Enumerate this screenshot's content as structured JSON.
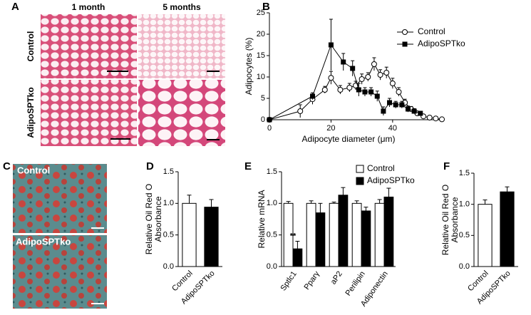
{
  "figure": {
    "panel_labels": [
      "A",
      "B",
      "C",
      "D",
      "E",
      "F"
    ],
    "panel_a": {
      "columns": [
        "1 month",
        "5 months"
      ],
      "rows": [
        "Control",
        "AdipoSPTko"
      ]
    },
    "panel_c": {
      "rows": [
        "Control",
        "AdipoSPTko"
      ]
    }
  },
  "chart_data": [
    {
      "type": "line",
      "ylabel": "Adipocytes (%)",
      "xlabel": "Adipocyte diameter (μm)",
      "legend": "upper right",
      "xlim": [
        0,
        56
      ],
      "xticks": [
        0,
        20,
        40
      ],
      "ylim": [
        0,
        25
      ],
      "yticks": [
        0,
        5,
        10,
        15,
        20,
        25
      ],
      "series": [
        {
          "name": "Control",
          "marker": "circle",
          "color": "#000000",
          "x": [
            0,
            10,
            14,
            18,
            20,
            23,
            26,
            28,
            30,
            32,
            34,
            36,
            38,
            40,
            42,
            44,
            46,
            48,
            50,
            52,
            54,
            56
          ],
          "values": [
            0,
            2,
            4.8,
            7,
            9.8,
            7,
            7.5,
            8,
            9.5,
            10,
            13,
            10.5,
            11,
            8.5,
            6.5,
            4,
            2.5,
            1.5,
            0.8,
            0.5,
            0.3,
            0.1
          ],
          "errors": [
            0,
            1.5,
            1.2,
            0.8,
            1.5,
            1,
            1,
            1,
            1.2,
            1,
            1.5,
            1.2,
            1.3,
            1.2,
            1,
            0.8,
            0.6,
            0.5,
            0.4,
            0.3,
            0.2,
            0.1
          ]
        },
        {
          "name": "AdipoSPTko",
          "marker": "square",
          "color": "#000000",
          "x": [
            0,
            14,
            20,
            24,
            27,
            29,
            31,
            33,
            35,
            37,
            39,
            41,
            43,
            45,
            47,
            49
          ],
          "values": [
            0,
            5.5,
            17.5,
            13.5,
            12,
            7,
            6.5,
            6.5,
            5.5,
            2,
            4,
            3.5,
            3.5,
            2.5,
            2,
            1.5
          ],
          "errors": [
            0,
            0.8,
            6,
            2,
            1.8,
            1.5,
            1,
            1,
            1.2,
            1,
            1,
            0.8,
            0.8,
            0.7,
            0.6,
            0.5
          ]
        }
      ]
    },
    {
      "type": "bar",
      "ylabel": [
        "Relative Oil Red O",
        "Absorbance"
      ],
      "categories": [
        "Control",
        "AdipoSPTko"
      ],
      "values": [
        1.0,
        0.94
      ],
      "errors": [
        0.13,
        0.12
      ],
      "colors": [
        "#ffffff",
        "#000000"
      ],
      "ylim": [
        0,
        1.5
      ],
      "yticks": [
        {
          "value": 0,
          "label": "0.0"
        },
        {
          "value": 0.5,
          "label": "0.5"
        },
        {
          "value": 1,
          "label": "1.0"
        },
        {
          "value": 1.5,
          "label": "1.5"
        }
      ]
    },
    {
      "type": "bar",
      "ylabel": [
        "Relative mRNA"
      ],
      "legend": "upper right",
      "annotation": "**",
      "categories": [
        "Sptlc1",
        "Pparγ",
        "aP2",
        "Perilipin",
        "Adiponectin"
      ],
      "series": [
        {
          "name": "Control",
          "color": "#ffffff",
          "values": [
            1.0,
            1.0,
            1.0,
            1.0,
            1.0
          ],
          "errors": [
            0.03,
            0.04,
            0.02,
            0.04,
            0.06
          ]
        },
        {
          "name": "AdipoSPTko",
          "color": "#000000",
          "values": [
            0.28,
            0.85,
            1.13,
            0.88,
            1.1
          ],
          "errors": [
            0.12,
            0.15,
            0.12,
            0.06,
            0.14
          ]
        }
      ],
      "ylim": [
        0,
        1.5
      ],
      "yticks": [
        {
          "value": 0,
          "label": "0.0"
        },
        {
          "value": 0.5,
          "label": "0.5"
        },
        {
          "value": 1,
          "label": "1.0"
        },
        {
          "value": 1.5,
          "label": "1.5"
        }
      ]
    },
    {
      "type": "bar",
      "ylabel": [
        "Relative Oil Red O",
        "Absorbance"
      ],
      "categories": [
        "Control",
        "AdipoSPTko"
      ],
      "values": [
        1.0,
        1.2
      ],
      "errors": [
        0.07,
        0.08
      ],
      "colors": [
        "#ffffff",
        "#000000"
      ],
      "ylim": [
        0,
        1.5
      ],
      "yticks": [
        {
          "value": 0,
          "label": "0.0"
        },
        {
          "value": 0.5,
          "label": "0.5"
        },
        {
          "value": 1,
          "label": "1.0"
        },
        {
          "value": 1.5,
          "label": "1.5"
        }
      ]
    }
  ]
}
